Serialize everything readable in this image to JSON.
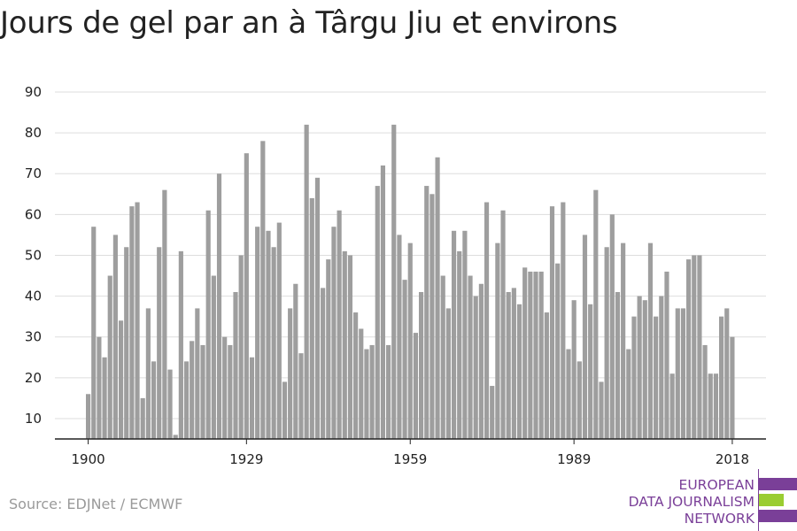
{
  "title": "Jours de gel par an à Târgu Jiu et environs",
  "source": "Source: EDJNet / ECMWF",
  "logo": {
    "lines": [
      "EUROPEAN",
      "DATA JOURNALISM",
      "NETWORK"
    ],
    "colors": {
      "purple": "#7a3f98",
      "green": "#9acd32"
    }
  },
  "colors": {
    "bar": "#9e9e9e",
    "grid": "#dddddd",
    "axis": "#222222"
  },
  "chart_data": {
    "type": "bar",
    "title": "Jours de gel par an à Târgu Jiu et environs",
    "xlabel": "",
    "ylabel": "",
    "ylim": [
      5,
      90
    ],
    "yticks": [
      10,
      20,
      30,
      40,
      50,
      60,
      70,
      80,
      90
    ],
    "xticks": [
      1900,
      1929,
      1959,
      1989,
      2018
    ],
    "grid": true,
    "x": [
      1900,
      1901,
      1902,
      1903,
      1904,
      1905,
      1906,
      1907,
      1908,
      1909,
      1910,
      1911,
      1912,
      1913,
      1914,
      1915,
      1916,
      1917,
      1918,
      1919,
      1920,
      1921,
      1922,
      1923,
      1924,
      1925,
      1926,
      1927,
      1928,
      1929,
      1930,
      1931,
      1932,
      1933,
      1934,
      1935,
      1936,
      1937,
      1938,
      1939,
      1940,
      1941,
      1942,
      1943,
      1944,
      1945,
      1946,
      1947,
      1948,
      1949,
      1950,
      1951,
      1952,
      1953,
      1954,
      1955,
      1956,
      1957,
      1958,
      1959,
      1960,
      1961,
      1962,
      1963,
      1964,
      1965,
      1966,
      1967,
      1968,
      1969,
      1970,
      1971,
      1972,
      1973,
      1974,
      1975,
      1976,
      1977,
      1978,
      1979,
      1980,
      1981,
      1982,
      1983,
      1984,
      1985,
      1986,
      1987,
      1988,
      1989,
      1990,
      1991,
      1992,
      1993,
      1994,
      1995,
      1996,
      1997,
      1998,
      1999,
      2000,
      2001,
      2002,
      2003,
      2004,
      2005,
      2006,
      2007,
      2008,
      2009,
      2010,
      2011,
      2012,
      2013,
      2014,
      2015,
      2016,
      2017,
      2018
    ],
    "values": [
      16,
      57,
      30,
      25,
      45,
      55,
      34,
      52,
      62,
      63,
      15,
      37,
      24,
      52,
      66,
      22,
      6,
      51,
      24,
      29,
      37,
      28,
      61,
      45,
      70,
      30,
      28,
      41,
      50,
      75,
      25,
      57,
      78,
      56,
      52,
      58,
      19,
      37,
      43,
      26,
      82,
      64,
      69,
      42,
      49,
      57,
      61,
      51,
      50,
      36,
      32,
      27,
      28,
      67,
      72,
      28,
      82,
      55,
      44,
      53,
      31,
      41,
      67,
      65,
      74,
      45,
      37,
      56,
      51,
      56,
      45,
      40,
      43,
      63,
      18,
      53,
      61,
      41,
      42,
      38,
      47,
      46,
      46,
      46,
      36,
      62,
      48,
      63,
      27,
      39,
      24,
      55,
      38,
      66,
      19,
      52,
      60,
      41,
      53,
      27,
      35,
      40,
      39,
      53,
      35,
      40,
      46,
      21,
      37,
      37,
      49,
      50,
      50,
      28,
      21,
      21,
      35,
      37,
      30
    ]
  }
}
